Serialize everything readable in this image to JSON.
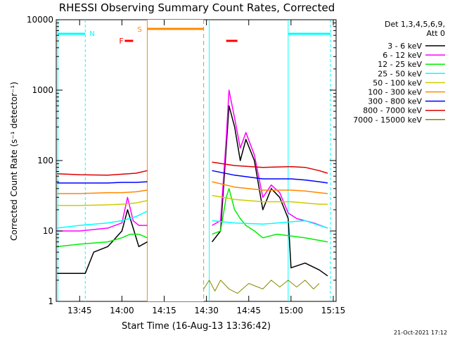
{
  "chart_data": {
    "type": "line",
    "title": "RHESSI Observing Summary Count Rates, Corrected",
    "xlabel": "Start Time (16-Aug-13 13:36:42)",
    "ylabel": "Corrected Count Rate (s⁻¹ detector⁻¹)",
    "yscale": "log",
    "ylim": [
      1,
      10000
    ],
    "xlim": [
      "13:36:42",
      "15:16:00"
    ],
    "x_ticks": [
      "13:45",
      "14:00",
      "14:15",
      "14:30",
      "14:45",
      "15:00",
      "15:15"
    ],
    "y_ticks": [
      "1",
      "10",
      "100",
      "1000",
      "10000"
    ],
    "grid": false,
    "legend_position": "right",
    "legend_header": [
      "Det 1,3,4,5,6,9,",
      "Att 0"
    ],
    "series": [
      {
        "name": "3 - 6 keV",
        "color": "#000000",
        "x": [
          "13:37",
          "13:47",
          "13:50",
          "13:55",
          "14:00",
          "14:02",
          "14:04",
          "14:06",
          "14:09",
          "14:29",
          "14:32",
          "14:35",
          "14:37",
          "14:38",
          "14:40",
          "14:42",
          "14:44",
          "14:47",
          "14:50",
          "14:53",
          "14:56",
          "14:59",
          "15:00",
          "15:05",
          "15:10",
          "15:13"
        ],
        "y": [
          2.5,
          2.5,
          5,
          6,
          10,
          20,
          11,
          6,
          7,
          null,
          7,
          10,
          150,
          600,
          300,
          100,
          200,
          100,
          20,
          40,
          30,
          15,
          3,
          3.5,
          2.8,
          2.3
        ]
      },
      {
        "name": "6 - 12 keV",
        "color": "#ff00ff",
        "x": [
          "13:37",
          "13:45",
          "13:55",
          "14:00",
          "14:02",
          "14:04",
          "14:06",
          "14:09",
          "14:29",
          "14:32",
          "14:35",
          "14:37",
          "14:38",
          "14:40",
          "14:42",
          "14:44",
          "14:47",
          "14:50",
          "14:53",
          "14:56",
          "14:59",
          "15:02",
          "15:08",
          "15:13"
        ],
        "y": [
          10,
          10,
          11,
          13,
          30,
          14,
          12,
          12,
          null,
          12,
          14,
          200,
          1000,
          400,
          150,
          250,
          120,
          30,
          45,
          35,
          18,
          15,
          13,
          11
        ]
      },
      {
        "name": "12 - 25 keV",
        "color": "#00ee00",
        "x": [
          "13:37",
          "13:45",
          "13:55",
          "14:00",
          "14:03",
          "14:06",
          "14:09",
          "14:29",
          "14:32",
          "14:35",
          "14:37",
          "14:38",
          "14:40",
          "14:42",
          "14:44",
          "14:47",
          "14:50",
          "14:55",
          "15:00",
          "15:05",
          "15:13"
        ],
        "y": [
          6,
          6.5,
          7,
          8,
          9,
          9,
          8,
          null,
          9,
          10,
          30,
          40,
          20,
          15,
          12,
          10,
          8,
          9,
          8.5,
          8,
          7
        ]
      },
      {
        "name": "25 - 50 keV",
        "color": "#00ffff",
        "x": [
          "13:37",
          "13:45",
          "13:55",
          "14:00",
          "14:05",
          "14:09",
          "14:29",
          "14:32",
          "14:40",
          "14:50",
          "15:00",
          "15:05",
          "15:10",
          "15:13"
        ],
        "y": [
          11,
          12,
          13,
          14,
          16,
          19,
          null,
          14,
          13,
          12.5,
          13.5,
          14,
          12,
          11
        ]
      },
      {
        "name": "50 - 100 keV",
        "color": "#cccc00",
        "x": [
          "13:37",
          "13:45",
          "13:55",
          "14:00",
          "14:05",
          "14:09",
          "14:29",
          "14:32",
          "14:40",
          "14:50",
          "15:00",
          "15:05",
          "15:10",
          "15:13"
        ],
        "y": [
          23,
          23,
          23.5,
          24,
          25,
          27,
          null,
          32,
          28,
          26,
          26,
          25,
          24,
          24
        ]
      },
      {
        "name": "100 - 300 keV",
        "color": "#ff8800",
        "x": [
          "13:37",
          "13:45",
          "13:55",
          "14:00",
          "14:05",
          "14:09",
          "14:29",
          "14:32",
          "14:40",
          "14:50",
          "15:00",
          "15:05",
          "15:10",
          "15:13"
        ],
        "y": [
          34,
          34,
          35,
          35,
          36,
          38,
          null,
          50,
          42,
          38,
          38,
          37,
          35,
          34
        ]
      },
      {
        "name": "300 - 800 keV",
        "color": "#0000ff",
        "x": [
          "13:37",
          "13:45",
          "13:55",
          "14:00",
          "14:05",
          "14:09",
          "14:29",
          "14:32",
          "14:40",
          "14:50",
          "15:00",
          "15:05",
          "15:10",
          "15:13"
        ],
        "y": [
          48,
          48,
          48,
          49,
          49,
          50,
          null,
          72,
          62,
          55,
          55,
          53,
          50,
          48
        ]
      },
      {
        "name": "800 - 7000 keV",
        "color": "#dd0000",
        "x": [
          "13:37",
          "13:45",
          "13:55",
          "14:00",
          "14:05",
          "14:09",
          "14:29",
          "14:32",
          "14:40",
          "14:50",
          "15:00",
          "15:05",
          "15:10",
          "15:13"
        ],
        "y": [
          65,
          63,
          62,
          64,
          66,
          72,
          null,
          95,
          85,
          80,
          82,
          80,
          72,
          66
        ]
      },
      {
        "name": "7000 - 15000 keV",
        "color": "#888800",
        "x": [
          "14:29",
          "14:31",
          "14:33",
          "14:35",
          "14:38",
          "14:41",
          "14:45",
          "14:50",
          "14:53",
          "14:56",
          "14:59",
          "15:02",
          "15:05",
          "15:08",
          "15:10"
        ],
        "y": [
          1.5,
          2,
          1.4,
          2,
          1.5,
          1.3,
          1.8,
          1.5,
          2,
          1.6,
          2,
          1.6,
          2,
          1.5,
          1.8
        ]
      }
    ],
    "annotations": [
      {
        "label": "N",
        "color": "#00ffff"
      },
      {
        "label": "F",
        "color": "#ff0000"
      },
      {
        "label": "S",
        "color": "#ff8800"
      }
    ],
    "footer_timestamp": "21-Oct-2021 17:12"
  }
}
